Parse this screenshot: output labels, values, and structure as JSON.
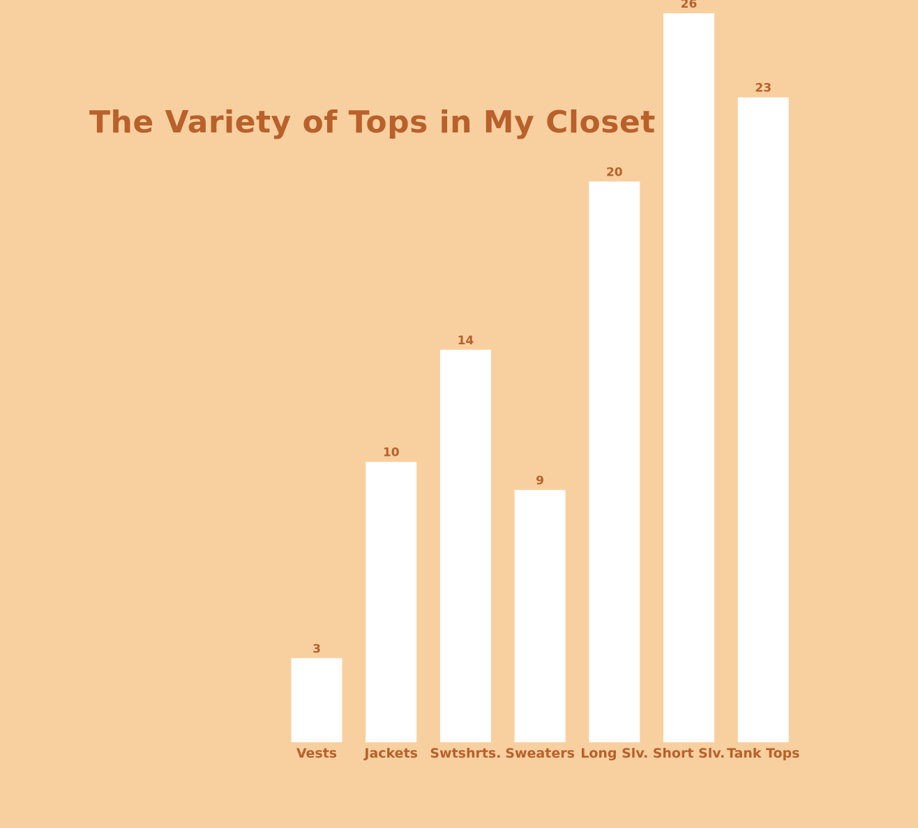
{
  "chart_data": {
    "type": "bar",
    "title": "The Variety of Tops in My Closet",
    "categories": [
      "Vests",
      "Jackets",
      "Swtshrts.",
      "Sweaters",
      "Long Slv.",
      "Short Slv.",
      "Tank Tops"
    ],
    "values": [
      3,
      10,
      14,
      9,
      20,
      26,
      23
    ],
    "ylim": [
      0,
      26
    ],
    "grid": false,
    "data_labels": true
  },
  "colors": {
    "background": "#f8d09f",
    "bar": "#ffffff",
    "text": "#b9602b"
  }
}
